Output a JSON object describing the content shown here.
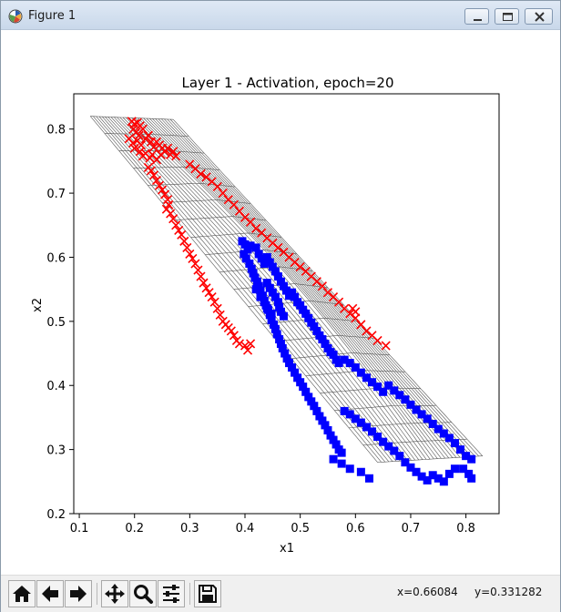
{
  "window": {
    "title": "Figure 1",
    "controls": [
      "minimize",
      "maximize",
      "close"
    ]
  },
  "toolbar": {
    "buttons": [
      {
        "name": "home",
        "icon": "home-icon"
      },
      {
        "name": "back",
        "icon": "arrow-left-icon"
      },
      {
        "name": "forward",
        "icon": "arrow-right-icon"
      },
      {
        "name": "pan",
        "icon": "move-icon"
      },
      {
        "name": "zoom",
        "icon": "magnifier-icon"
      },
      {
        "name": "configure-subplots",
        "icon": "sliders-icon"
      },
      {
        "name": "save",
        "icon": "floppy-disk-icon"
      }
    ],
    "x_readout": "x=0.66084",
    "y_readout": "y=0.331282"
  },
  "chart_data": {
    "type": "scatter",
    "title": "Layer 1 - Activation, epoch=20",
    "xlabel": "x1",
    "ylabel": "x2",
    "xlim": [
      0.09,
      0.86
    ],
    "ylim": [
      0.2,
      0.855
    ],
    "xticks": [
      "0.1",
      "0.2",
      "0.3",
      "0.4",
      "0.5",
      "0.6",
      "0.7",
      "0.8"
    ],
    "yticks": [
      "0.2",
      "0.3",
      "0.4",
      "0.5",
      "0.6",
      "0.7",
      "0.8"
    ],
    "grid": false,
    "legend": "none",
    "background_grid_mesh": {
      "color": "#555555",
      "description": "warped 2D activation grid mesh",
      "corners": {
        "top_left": [
          0.12,
          0.82
        ],
        "top_right": [
          0.27,
          0.815
        ],
        "bottom_right": [
          0.83,
          0.29
        ],
        "bottom_left": [
          0.64,
          0.28
        ]
      }
    },
    "series": [
      {
        "marker": "x",
        "color": "#ff0000",
        "points": [
          [
            0.195,
            0.812
          ],
          [
            0.2,
            0.808
          ],
          [
            0.205,
            0.81
          ],
          [
            0.198,
            0.8
          ],
          [
            0.203,
            0.795
          ],
          [
            0.21,
            0.805
          ],
          [
            0.215,
            0.8
          ],
          [
            0.208,
            0.79
          ],
          [
            0.19,
            0.785
          ],
          [
            0.197,
            0.778
          ],
          [
            0.205,
            0.782
          ],
          [
            0.212,
            0.775
          ],
          [
            0.22,
            0.785
          ],
          [
            0.225,
            0.79
          ],
          [
            0.23,
            0.78
          ],
          [
            0.235,
            0.772
          ],
          [
            0.24,
            0.78
          ],
          [
            0.245,
            0.775
          ],
          [
            0.25,
            0.77
          ],
          [
            0.255,
            0.765
          ],
          [
            0.26,
            0.77
          ],
          [
            0.265,
            0.76
          ],
          [
            0.27,
            0.765
          ],
          [
            0.275,
            0.758
          ],
          [
            0.2,
            0.77
          ],
          [
            0.21,
            0.765
          ],
          [
            0.215,
            0.758
          ],
          [
            0.22,
            0.762
          ],
          [
            0.228,
            0.755
          ],
          [
            0.232,
            0.76
          ],
          [
            0.24,
            0.752
          ],
          [
            0.248,
            0.76
          ],
          [
            0.225,
            0.74
          ],
          [
            0.23,
            0.735
          ],
          [
            0.235,
            0.728
          ],
          [
            0.24,
            0.72
          ],
          [
            0.245,
            0.712
          ],
          [
            0.25,
            0.705
          ],
          [
            0.255,
            0.698
          ],
          [
            0.26,
            0.69
          ],
          [
            0.262,
            0.682
          ],
          [
            0.258,
            0.675
          ],
          [
            0.265,
            0.668
          ],
          [
            0.27,
            0.66
          ],
          [
            0.275,
            0.65
          ],
          [
            0.28,
            0.642
          ],
          [
            0.285,
            0.635
          ],
          [
            0.29,
            0.625
          ],
          [
            0.295,
            0.615
          ],
          [
            0.3,
            0.605
          ],
          [
            0.305,
            0.598
          ],
          [
            0.31,
            0.59
          ],
          [
            0.315,
            0.58
          ],
          [
            0.32,
            0.57
          ],
          [
            0.325,
            0.56
          ],
          [
            0.33,
            0.552
          ],
          [
            0.335,
            0.545
          ],
          [
            0.34,
            0.538
          ],
          [
            0.345,
            0.53
          ],
          [
            0.35,
            0.52
          ],
          [
            0.355,
            0.51
          ],
          [
            0.36,
            0.5
          ],
          [
            0.365,
            0.495
          ],
          [
            0.37,
            0.49
          ],
          [
            0.375,
            0.485
          ],
          [
            0.38,
            0.478
          ],
          [
            0.385,
            0.47
          ],
          [
            0.39,
            0.465
          ],
          [
            0.4,
            0.462
          ],
          [
            0.405,
            0.455
          ],
          [
            0.41,
            0.465
          ],
          [
            0.3,
            0.745
          ],
          [
            0.31,
            0.738
          ],
          [
            0.32,
            0.73
          ],
          [
            0.33,
            0.725
          ],
          [
            0.34,
            0.718
          ],
          [
            0.35,
            0.71
          ],
          [
            0.36,
            0.7
          ],
          [
            0.37,
            0.69
          ],
          [
            0.38,
            0.682
          ],
          [
            0.39,
            0.672
          ],
          [
            0.4,
            0.662
          ],
          [
            0.41,
            0.655
          ],
          [
            0.42,
            0.645
          ],
          [
            0.43,
            0.638
          ],
          [
            0.44,
            0.63
          ],
          [
            0.45,
            0.622
          ],
          [
            0.46,
            0.615
          ],
          [
            0.47,
            0.608
          ],
          [
            0.48,
            0.6
          ],
          [
            0.49,
            0.592
          ],
          [
            0.5,
            0.585
          ],
          [
            0.51,
            0.578
          ],
          [
            0.52,
            0.57
          ],
          [
            0.53,
            0.562
          ],
          [
            0.54,
            0.555
          ],
          [
            0.55,
            0.545
          ],
          [
            0.56,
            0.538
          ],
          [
            0.57,
            0.53
          ],
          [
            0.58,
            0.52
          ],
          [
            0.59,
            0.512
          ],
          [
            0.6,
            0.505
          ],
          [
            0.61,
            0.495
          ],
          [
            0.62,
            0.485
          ],
          [
            0.63,
            0.478
          ],
          [
            0.64,
            0.47
          ],
          [
            0.655,
            0.462
          ],
          [
            0.595,
            0.52
          ],
          [
            0.6,
            0.515
          ]
        ]
      },
      {
        "marker": "s",
        "color": "#0000ff",
        "points": [
          [
            0.395,
            0.625
          ],
          [
            0.4,
            0.62
          ],
          [
            0.405,
            0.612
          ],
          [
            0.41,
            0.618
          ],
          [
            0.398,
            0.605
          ],
          [
            0.402,
            0.598
          ],
          [
            0.408,
            0.59
          ],
          [
            0.412,
            0.582
          ],
          [
            0.415,
            0.575
          ],
          [
            0.418,
            0.568
          ],
          [
            0.422,
            0.562
          ],
          [
            0.425,
            0.555
          ],
          [
            0.428,
            0.548
          ],
          [
            0.432,
            0.54
          ],
          [
            0.435,
            0.532
          ],
          [
            0.438,
            0.525
          ],
          [
            0.442,
            0.518
          ],
          [
            0.445,
            0.51
          ],
          [
            0.448,
            0.502
          ],
          [
            0.452,
            0.495
          ],
          [
            0.455,
            0.488
          ],
          [
            0.458,
            0.48
          ],
          [
            0.462,
            0.472
          ],
          [
            0.465,
            0.465
          ],
          [
            0.468,
            0.458
          ],
          [
            0.472,
            0.45
          ],
          [
            0.476,
            0.442
          ],
          [
            0.48,
            0.435
          ],
          [
            0.485,
            0.428
          ],
          [
            0.49,
            0.42
          ],
          [
            0.495,
            0.412
          ],
          [
            0.5,
            0.405
          ],
          [
            0.505,
            0.398
          ],
          [
            0.51,
            0.39
          ],
          [
            0.515,
            0.382
          ],
          [
            0.52,
            0.375
          ],
          [
            0.525,
            0.368
          ],
          [
            0.53,
            0.36
          ],
          [
            0.535,
            0.352
          ],
          [
            0.54,
            0.345
          ],
          [
            0.545,
            0.338
          ],
          [
            0.55,
            0.33
          ],
          [
            0.555,
            0.322
          ],
          [
            0.56,
            0.315
          ],
          [
            0.565,
            0.308
          ],
          [
            0.57,
            0.3
          ],
          [
            0.575,
            0.295
          ],
          [
            0.42,
            0.615
          ],
          [
            0.425,
            0.605
          ],
          [
            0.43,
            0.598
          ],
          [
            0.435,
            0.59
          ],
          [
            0.44,
            0.6
          ],
          [
            0.445,
            0.592
          ],
          [
            0.45,
            0.585
          ],
          [
            0.455,
            0.578
          ],
          [
            0.46,
            0.57
          ],
          [
            0.465,
            0.562
          ],
          [
            0.47,
            0.555
          ],
          [
            0.475,
            0.548
          ],
          [
            0.48,
            0.54
          ],
          [
            0.485,
            0.545
          ],
          [
            0.49,
            0.538
          ],
          [
            0.495,
            0.53
          ],
          [
            0.5,
            0.525
          ],
          [
            0.505,
            0.518
          ],
          [
            0.51,
            0.512
          ],
          [
            0.515,
            0.505
          ],
          [
            0.52,
            0.498
          ],
          [
            0.525,
            0.492
          ],
          [
            0.53,
            0.485
          ],
          [
            0.535,
            0.478
          ],
          [
            0.54,
            0.472
          ],
          [
            0.545,
            0.465
          ],
          [
            0.55,
            0.458
          ],
          [
            0.555,
            0.452
          ],
          [
            0.56,
            0.448
          ],
          [
            0.565,
            0.44
          ],
          [
            0.57,
            0.435
          ],
          [
            0.44,
            0.56
          ],
          [
            0.445,
            0.552
          ],
          [
            0.45,
            0.545
          ],
          [
            0.455,
            0.538
          ],
          [
            0.46,
            0.53
          ],
          [
            0.462,
            0.522
          ],
          [
            0.465,
            0.515
          ],
          [
            0.47,
            0.508
          ],
          [
            0.42,
            0.55
          ],
          [
            0.428,
            0.538
          ],
          [
            0.435,
            0.53
          ],
          [
            0.44,
            0.52
          ],
          [
            0.448,
            0.512
          ],
          [
            0.58,
            0.44
          ],
          [
            0.59,
            0.435
          ],
          [
            0.6,
            0.428
          ],
          [
            0.61,
            0.42
          ],
          [
            0.62,
            0.412
          ],
          [
            0.63,
            0.405
          ],
          [
            0.64,
            0.398
          ],
          [
            0.65,
            0.39
          ],
          [
            0.66,
            0.4
          ],
          [
            0.67,
            0.392
          ],
          [
            0.68,
            0.385
          ],
          [
            0.69,
            0.378
          ],
          [
            0.7,
            0.37
          ],
          [
            0.71,
            0.362
          ],
          [
            0.72,
            0.355
          ],
          [
            0.73,
            0.348
          ],
          [
            0.74,
            0.34
          ],
          [
            0.75,
            0.332
          ],
          [
            0.76,
            0.325
          ],
          [
            0.77,
            0.318
          ],
          [
            0.78,
            0.31
          ],
          [
            0.79,
            0.3
          ],
          [
            0.8,
            0.29
          ],
          [
            0.81,
            0.285
          ],
          [
            0.58,
            0.36
          ],
          [
            0.59,
            0.355
          ],
          [
            0.6,
            0.348
          ],
          [
            0.61,
            0.342
          ],
          [
            0.62,
            0.335
          ],
          [
            0.63,
            0.328
          ],
          [
            0.64,
            0.32
          ],
          [
            0.65,
            0.312
          ],
          [
            0.66,
            0.305
          ],
          [
            0.67,
            0.298
          ],
          [
            0.68,
            0.29
          ],
          [
            0.69,
            0.28
          ],
          [
            0.7,
            0.272
          ],
          [
            0.71,
            0.265
          ],
          [
            0.72,
            0.258
          ],
          [
            0.73,
            0.252
          ],
          [
            0.74,
            0.26
          ],
          [
            0.75,
            0.255
          ],
          [
            0.76,
            0.25
          ],
          [
            0.77,
            0.262
          ],
          [
            0.78,
            0.27
          ],
          [
            0.795,
            0.27
          ],
          [
            0.805,
            0.262
          ],
          [
            0.81,
            0.255
          ],
          [
            0.56,
            0.285
          ],
          [
            0.575,
            0.278
          ],
          [
            0.59,
            0.27
          ],
          [
            0.61,
            0.265
          ],
          [
            0.625,
            0.255
          ]
        ]
      }
    ]
  }
}
